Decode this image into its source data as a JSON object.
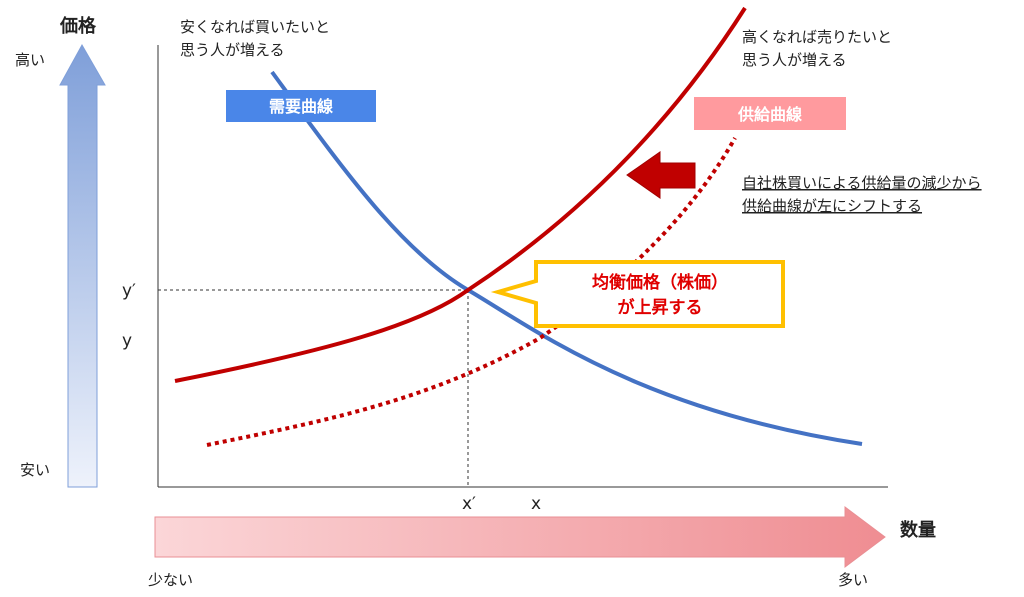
{
  "price_axis": {
    "title": "価格",
    "high": "高い",
    "low": "安い"
  },
  "quantity_axis": {
    "title": "数量",
    "low": "少ない",
    "high": "多い"
  },
  "notes": {
    "demand": [
      "安くなれば買いたいと",
      "思う人が増える"
    ],
    "supply": [
      "高くなれば売りたいと",
      "思う人が増える"
    ],
    "shift": [
      "自社株買いによる供給量の減少から",
      "供給曲線が左にシフトする"
    ]
  },
  "curves": {
    "demand": "需要曲線",
    "supply": "供給曲線"
  },
  "callout": [
    "均衡価格（株価）",
    "が上昇する"
  ],
  "points": {
    "y_new": "y′",
    "y_old": "y",
    "x_new": "x′",
    "x_old": "x"
  }
}
